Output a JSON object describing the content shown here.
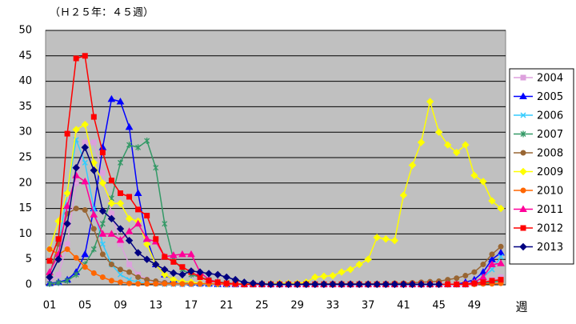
{
  "chart_data": {
    "type": "line",
    "title": "（Ｈ２５年：４５週）",
    "x_label": "週",
    "categories": [
      "01",
      null,
      null,
      null,
      "05",
      null,
      null,
      null,
      "09",
      null,
      null,
      null,
      "13",
      null,
      null,
      null,
      "17",
      null,
      null,
      null,
      "21",
      null,
      null,
      null,
      "25",
      null,
      null,
      null,
      "29",
      null,
      null,
      null,
      "33",
      null,
      null,
      null,
      "37",
      null,
      null,
      null,
      "41",
      null,
      null,
      null,
      "45",
      null,
      null,
      null,
      "49",
      null,
      null,
      null
    ],
    "ylim": [
      0,
      50
    ],
    "yticks": [
      0,
      5,
      10,
      15,
      20,
      25,
      30,
      35,
      40,
      45,
      50
    ],
    "grid": true,
    "legend": "right",
    "series": [
      {
        "name": "2004",
        "color": "#dda0dd",
        "marker": "square",
        "values": [
          0.5,
          2,
          8,
          20,
          28,
          28,
          22,
          14,
          8,
          4,
          2,
          1,
          0.5,
          0.3,
          0.2,
          0.1,
          0.1,
          0.1,
          0.1,
          0.1,
          0,
          0,
          0,
          0,
          0,
          0,
          0,
          0,
          0,
          0,
          0,
          0,
          0,
          0,
          0,
          0,
          0,
          0,
          0,
          0,
          0,
          0,
          0,
          0,
          0,
          0,
          0,
          0,
          0.2,
          0.5,
          1,
          1.5
        ]
      },
      {
        "name": "2005",
        "color": "#0000ff",
        "marker": "triangle",
        "values": [
          0.3,
          0.5,
          1,
          2.5,
          6,
          15,
          27,
          36.5,
          36,
          31,
          18,
          9,
          4,
          2,
          1,
          0.6,
          0.4,
          0.3,
          0.2,
          0.1,
          0.1,
          0.1,
          0.1,
          0.1,
          0.1,
          0.1,
          0.1,
          0.1,
          0.1,
          0.1,
          0.1,
          0.1,
          0.1,
          0.1,
          0.1,
          0.1,
          0.1,
          0.1,
          0.1,
          0.1,
          0.1,
          0.1,
          0.1,
          0.1,
          0.1,
          0.1,
          0.1,
          0.5,
          1,
          2.5,
          5,
          6.3
        ]
      },
      {
        "name": "2006",
        "color": "#33ccff",
        "marker": "x",
        "values": [
          2,
          8,
          18,
          28.5,
          24,
          15,
          8,
          4,
          2,
          1,
          0.5,
          0.3,
          0.2,
          0.1,
          0.1,
          0.1,
          0.1,
          0.1,
          0.1,
          0.1,
          0,
          0,
          0,
          0,
          0,
          0,
          0,
          0,
          0,
          0,
          0,
          0,
          0,
          0,
          0,
          0,
          0,
          0,
          0,
          0,
          0,
          0,
          0,
          0,
          0,
          0,
          0,
          0,
          0.5,
          1.5,
          3,
          5.5
        ]
      },
      {
        "name": "2007",
        "color": "#339966",
        "marker": "star",
        "values": [
          0.2,
          0.4,
          0.8,
          2,
          4,
          7,
          12,
          17,
          24,
          27.5,
          27,
          28.3,
          23,
          12,
          5,
          3,
          2,
          1.5,
          1,
          0.6,
          0.4,
          0.2,
          0.1,
          0.1,
          0.1,
          0.1,
          0.1,
          0.1,
          0.1,
          0.1,
          0.1,
          0.1,
          0.1,
          0.1,
          0.1,
          0.1,
          0.1,
          0.1,
          0.1,
          0.1,
          0.1,
          0.1,
          0.1,
          0.1,
          0.1,
          0.1,
          0.1,
          0.1,
          0.2,
          0.3,
          0.5,
          0.8
        ]
      },
      {
        "name": "2008",
        "color": "#996633",
        "marker": "circle",
        "values": [
          2,
          8,
          14,
          15,
          14.7,
          11,
          6,
          4,
          3,
          2.5,
          1.5,
          1,
          0.7,
          0.4,
          0.3,
          0.2,
          0.2,
          0.2,
          0.2,
          0.2,
          0.2,
          0.2,
          0.2,
          0.2,
          0.2,
          0.2,
          0.2,
          0.2,
          0.2,
          0.2,
          0.2,
          0.2,
          0.2,
          0.2,
          0.2,
          0.2,
          0.2,
          0.2,
          0.2,
          0.3,
          0.3,
          0.4,
          0.5,
          0.6,
          0.7,
          1,
          1.3,
          1.8,
          2.5,
          4,
          6,
          7.5
        ]
      },
      {
        "name": "2009",
        "color": "#ffff00",
        "marker": "diamond",
        "values": [
          7,
          12.5,
          18,
          30.5,
          31.5,
          24,
          20,
          16,
          16,
          13,
          12.5,
          8,
          4,
          2,
          1,
          0.6,
          0.5,
          0.3,
          0.2,
          0.2,
          0.2,
          0.2,
          0.2,
          0.2,
          0.2,
          0.2,
          0.3,
          0.3,
          0.3,
          0.5,
          1.5,
          1.7,
          1.8,
          2.5,
          3,
          4,
          5,
          9.3,
          9,
          8.7,
          17.6,
          23.5,
          28,
          36,
          30,
          27.5,
          26,
          27.5,
          21.5,
          20.3,
          16.5,
          15
        ]
      },
      {
        "name": "2010",
        "color": "#ff6600",
        "marker": "circle",
        "values": [
          7,
          6,
          7,
          5.3,
          3.5,
          2.3,
          1.5,
          0.8,
          0.5,
          0.3,
          0.2,
          0.2,
          0.2,
          0.2,
          0.2,
          0.2,
          0.2,
          0.2,
          0.2,
          0.2,
          0.1,
          0.1,
          0.1,
          0.1,
          0.1,
          0.1,
          0.1,
          0.1,
          0.1,
          0.1,
          0.1,
          0.1,
          0.1,
          0.1,
          0.1,
          0.1,
          0.1,
          0.1,
          0.1,
          0.1,
          0.1,
          0.1,
          0.1,
          0.1,
          0.1,
          0.1,
          0.1,
          0.1,
          0.1,
          0.2,
          0.2,
          0.3
        ]
      },
      {
        "name": "2011",
        "color": "#ff0099",
        "marker": "triangle",
        "values": [
          2.5,
          6,
          15.5,
          21.5,
          20.3,
          13.8,
          10,
          10,
          8.8,
          10.5,
          12,
          9,
          8.5,
          5.5,
          5.8,
          6,
          6,
          2.5,
          1,
          0.5,
          0.3,
          0.2,
          0.1,
          0.1,
          0.1,
          0.1,
          0.1,
          0.1,
          0.1,
          0.1,
          0.1,
          0.1,
          0.1,
          0.1,
          0.1,
          0.1,
          0.1,
          0.1,
          0.1,
          0.1,
          0.1,
          0.1,
          0.1,
          0.1,
          0.1,
          0.1,
          0.1,
          0.1,
          0.5,
          1.5,
          4,
          4.2
        ]
      },
      {
        "name": "2012",
        "color": "#ff0000",
        "marker": "square",
        "values": [
          4.7,
          9,
          29.7,
          44.5,
          45,
          33,
          26,
          20.5,
          18,
          17.3,
          14.8,
          13.6,
          9,
          5.5,
          4.5,
          3.5,
          2.5,
          1.5,
          0.8,
          0.5,
          0.3,
          0.2,
          0.1,
          0.1,
          0.1,
          0.1,
          0.1,
          0.1,
          0.1,
          0.1,
          0.1,
          0.1,
          0.1,
          0.1,
          0.1,
          0.1,
          0.1,
          0.1,
          0.1,
          0.1,
          0.1,
          0.1,
          0.1,
          0.1,
          0.1,
          0.1,
          0.1,
          0.1,
          0.3,
          0.5,
          0.8,
          1
        ]
      },
      {
        "name": "2013",
        "color": "#000080",
        "marker": "diamond",
        "values": [
          1.5,
          5,
          12,
          23,
          27,
          22.5,
          14.5,
          13,
          11,
          8.7,
          6.3,
          5,
          4,
          3,
          2.3,
          2,
          2.7,
          2.5,
          2.2,
          2,
          1.5,
          1,
          0.5,
          0.3,
          0.2,
          0.1,
          0.1,
          0.1,
          0.1,
          0.1,
          0.1,
          0.1,
          0.1,
          0.1,
          0.1,
          0.1,
          0.1,
          0.1,
          0.1,
          0.1,
          0.1,
          0.1,
          0.1,
          0.1,
          0.1,
          null,
          null,
          null,
          null,
          null,
          null,
          null
        ]
      }
    ]
  }
}
